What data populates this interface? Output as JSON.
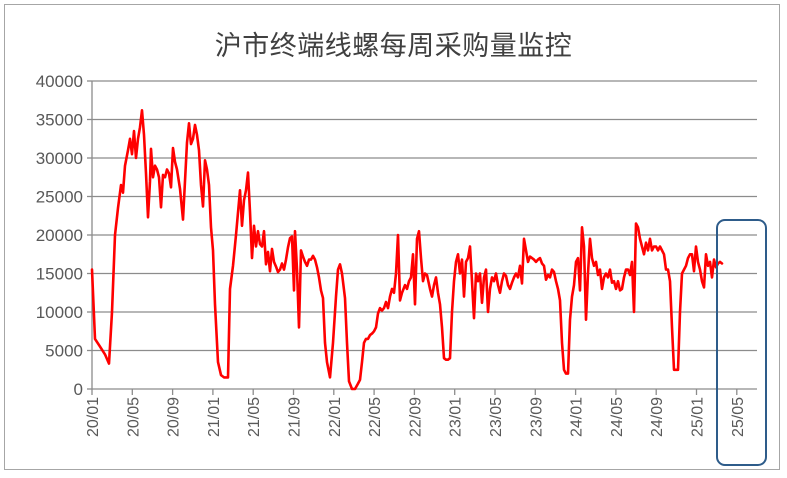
{
  "chart_data": {
    "type": "line",
    "title": "沪市终端线螺每周采购量监控",
    "xlabel": "",
    "ylabel": "",
    "ylim": [
      0,
      40000
    ],
    "yticks": [
      0,
      5000,
      10000,
      15000,
      20000,
      25000,
      30000,
      35000,
      40000
    ],
    "x_tick_labels": [
      "20/01",
      "20/05",
      "20/09",
      "21/01",
      "21/05",
      "21/09",
      "22/01",
      "22/05",
      "22/09",
      "23/01",
      "23/05",
      "23/09",
      "24/01",
      "24/05",
      "24/09",
      "25/01",
      "25/05"
    ],
    "grid": "horizontal",
    "legend": "none",
    "series": [
      {
        "name": "沪市终端线螺每周采购量",
        "color": "#ff0000",
        "points": [
          [
            92,
            15500
          ],
          [
            95,
            6500
          ],
          [
            100,
            5500
          ],
          [
            105,
            4500
          ],
          [
            109,
            3300
          ],
          [
            112,
            10000
          ],
          [
            115,
            20000
          ],
          [
            118,
            23500
          ],
          [
            121,
            26500
          ],
          [
            123,
            25500
          ],
          [
            125,
            29000
          ],
          [
            128,
            31000
          ],
          [
            130,
            32500
          ],
          [
            132,
            30500
          ],
          [
            134,
            33500
          ],
          [
            136,
            30000
          ],
          [
            138,
            32500
          ],
          [
            140,
            34000
          ],
          [
            142,
            36200
          ],
          [
            144,
            33000
          ],
          [
            146,
            28000
          ],
          [
            148,
            22300
          ],
          [
            150,
            27000
          ],
          [
            151,
            31200
          ],
          [
            153,
            27500
          ],
          [
            155,
            29000
          ],
          [
            157,
            28500
          ],
          [
            159,
            27500
          ],
          [
            161,
            23600
          ],
          [
            163,
            27800
          ],
          [
            165,
            27500
          ],
          [
            167,
            28500
          ],
          [
            169,
            28000
          ],
          [
            171,
            26200
          ],
          [
            173,
            31300
          ],
          [
            175,
            29500
          ],
          [
            177,
            28500
          ],
          [
            180,
            26000
          ],
          [
            183,
            22000
          ],
          [
            185,
            27000
          ],
          [
            187,
            32000
          ],
          [
            189,
            34500
          ],
          [
            191,
            31800
          ],
          [
            193,
            32500
          ],
          [
            195,
            34300
          ],
          [
            197,
            33000
          ],
          [
            199,
            31000
          ],
          [
            201,
            26500
          ],
          [
            203,
            23700
          ],
          [
            205,
            29700
          ],
          [
            207,
            28500
          ],
          [
            209,
            26500
          ],
          [
            211,
            21000
          ],
          [
            213,
            18000
          ],
          [
            215,
            11000
          ],
          [
            218,
            3500
          ],
          [
            221,
            1800
          ],
          [
            224,
            1500
          ],
          [
            228,
            1500
          ],
          [
            230,
            13000
          ],
          [
            233,
            16000
          ],
          [
            236,
            20000
          ],
          [
            240,
            25800
          ],
          [
            242,
            21200
          ],
          [
            244,
            24500
          ],
          [
            246,
            25800
          ],
          [
            248,
            28100
          ],
          [
            250,
            23000
          ],
          [
            252,
            17000
          ],
          [
            254,
            21200
          ],
          [
            256,
            18500
          ],
          [
            258,
            20500
          ],
          [
            260,
            18800
          ],
          [
            262,
            18500
          ],
          [
            264,
            20500
          ],
          [
            266,
            16200
          ],
          [
            268,
            17800
          ],
          [
            270,
            15300
          ],
          [
            272,
            18200
          ],
          [
            274,
            16500
          ],
          [
            276,
            15900
          ],
          [
            278,
            15200
          ],
          [
            280,
            15500
          ],
          [
            282,
            16300
          ],
          [
            284,
            15500
          ],
          [
            286,
            16800
          ],
          [
            288,
            18400
          ],
          [
            290,
            19600
          ],
          [
            292,
            19800
          ],
          [
            294,
            12800
          ],
          [
            295,
            20500
          ],
          [
            297,
            15500
          ],
          [
            299,
            8000
          ],
          [
            301,
            18000
          ],
          [
            303,
            17200
          ],
          [
            305,
            16500
          ],
          [
            307,
            16000
          ],
          [
            309,
            16800
          ],
          [
            311,
            16800
          ],
          [
            313,
            17300
          ],
          [
            315,
            16800
          ],
          [
            317,
            15800
          ],
          [
            319,
            14500
          ],
          [
            321,
            12800
          ],
          [
            323,
            11800
          ],
          [
            325,
            6000
          ],
          [
            327,
            3500
          ],
          [
            330,
            1500
          ],
          [
            333,
            6000
          ],
          [
            336,
            12000
          ],
          [
            338,
            15500
          ],
          [
            340,
            16200
          ],
          [
            342,
            15000
          ],
          [
            345,
            11800
          ],
          [
            347,
            6000
          ],
          [
            349,
            1000
          ],
          [
            352,
            0
          ],
          [
            355,
            0
          ],
          [
            358,
            700
          ],
          [
            360,
            1200
          ],
          [
            362,
            3500
          ],
          [
            364,
            6000
          ],
          [
            366,
            6500
          ],
          [
            368,
            6500
          ],
          [
            370,
            7000
          ],
          [
            372,
            7200
          ],
          [
            374,
            7500
          ],
          [
            376,
            8000
          ],
          [
            378,
            9800
          ],
          [
            380,
            10500
          ],
          [
            382,
            10200
          ],
          [
            384,
            10500
          ],
          [
            386,
            11300
          ],
          [
            388,
            10500
          ],
          [
            390,
            12000
          ],
          [
            392,
            13000
          ],
          [
            394,
            12500
          ],
          [
            396,
            15000
          ],
          [
            398,
            20000
          ],
          [
            400,
            11500
          ],
          [
            402,
            12500
          ],
          [
            405,
            13500
          ],
          [
            407,
            13000
          ],
          [
            409,
            14000
          ],
          [
            411,
            14500
          ],
          [
            413,
            17500
          ],
          [
            415,
            11000
          ],
          [
            417,
            19500
          ],
          [
            419,
            20500
          ],
          [
            421,
            17000
          ],
          [
            423,
            14000
          ],
          [
            425,
            15000
          ],
          [
            427,
            14800
          ],
          [
            430,
            13000
          ],
          [
            432,
            12000
          ],
          [
            434,
            13500
          ],
          [
            436,
            14500
          ],
          [
            438,
            12500
          ],
          [
            440,
            11000
          ],
          [
            442,
            8000
          ],
          [
            444,
            4000
          ],
          [
            446,
            3800
          ],
          [
            448,
            3800
          ],
          [
            450,
            4000
          ],
          [
            452,
            10000
          ],
          [
            454,
            14000
          ],
          [
            456,
            16500
          ],
          [
            458,
            17500
          ],
          [
            460,
            15000
          ],
          [
            462,
            16800
          ],
          [
            464,
            12000
          ],
          [
            466,
            16500
          ],
          [
            468,
            17000
          ],
          [
            470,
            18500
          ],
          [
            472,
            14000
          ],
          [
            474,
            9200
          ],
          [
            476,
            15000
          ],
          [
            478,
            14000
          ],
          [
            480,
            15000
          ],
          [
            482,
            11200
          ],
          [
            484,
            14500
          ],
          [
            486,
            15500
          ],
          [
            488,
            10000
          ],
          [
            490,
            13000
          ],
          [
            492,
            14500
          ],
          [
            494,
            14000
          ],
          [
            496,
            15000
          ],
          [
            498,
            13500
          ],
          [
            500,
            12500
          ],
          [
            502,
            14000
          ],
          [
            504,
            15000
          ],
          [
            506,
            14700
          ],
          [
            508,
            13500
          ],
          [
            510,
            13000
          ],
          [
            512,
            13800
          ],
          [
            514,
            14500
          ],
          [
            516,
            15000
          ],
          [
            518,
            14500
          ],
          [
            520,
            16000
          ],
          [
            522,
            13700
          ],
          [
            524,
            19500
          ],
          [
            526,
            18000
          ],
          [
            528,
            16500
          ],
          [
            530,
            17200
          ],
          [
            532,
            17000
          ],
          [
            534,
            16800
          ],
          [
            536,
            16500
          ],
          [
            538,
            16800
          ],
          [
            540,
            17000
          ],
          [
            542,
            16300
          ],
          [
            544,
            16000
          ],
          [
            546,
            14200
          ],
          [
            548,
            14800
          ],
          [
            550,
            14500
          ],
          [
            552,
            15500
          ],
          [
            554,
            15200
          ],
          [
            556,
            14000
          ],
          [
            558,
            13000
          ],
          [
            560,
            11500
          ],
          [
            562,
            6000
          ],
          [
            564,
            2500
          ],
          [
            566,
            2000
          ],
          [
            568,
            2000
          ],
          [
            570,
            9000
          ],
          [
            572,
            12000
          ],
          [
            574,
            13500
          ],
          [
            576,
            16500
          ],
          [
            578,
            17000
          ],
          [
            580,
            12800
          ],
          [
            582,
            21000
          ],
          [
            584,
            18500
          ],
          [
            586,
            9000
          ],
          [
            588,
            15000
          ],
          [
            590,
            19500
          ],
          [
            592,
            17000
          ],
          [
            594,
            16000
          ],
          [
            596,
            16500
          ],
          [
            598,
            14800
          ],
          [
            600,
            15500
          ],
          [
            602,
            13000
          ],
          [
            604,
            14500
          ],
          [
            606,
            15000
          ],
          [
            608,
            14500
          ],
          [
            610,
            15500
          ],
          [
            612,
            13800
          ],
          [
            614,
            14000
          ],
          [
            616,
            13000
          ],
          [
            618,
            14000
          ],
          [
            620,
            12800
          ],
          [
            622,
            13000
          ],
          [
            624,
            14500
          ],
          [
            626,
            15500
          ],
          [
            628,
            15500
          ],
          [
            630,
            14800
          ],
          [
            632,
            16500
          ],
          [
            634,
            10000
          ],
          [
            636,
            21500
          ],
          [
            638,
            21000
          ],
          [
            640,
            19500
          ],
          [
            642,
            18500
          ],
          [
            644,
            17500
          ],
          [
            646,
            19000
          ],
          [
            648,
            18000
          ],
          [
            650,
            19500
          ],
          [
            652,
            18000
          ],
          [
            654,
            18500
          ],
          [
            656,
            18500
          ],
          [
            658,
            18000
          ],
          [
            660,
            18500
          ],
          [
            662,
            18000
          ],
          [
            664,
            17500
          ],
          [
            666,
            15500
          ],
          [
            668,
            15500
          ],
          [
            670,
            14000
          ],
          [
            672,
            8000
          ],
          [
            674,
            2500
          ],
          [
            676,
            2500
          ],
          [
            678,
            2500
          ],
          [
            680,
            10000
          ],
          [
            682,
            15000
          ],
          [
            684,
            15500
          ],
          [
            686,
            16000
          ],
          [
            688,
            17000
          ],
          [
            690,
            17500
          ],
          [
            692,
            17500
          ],
          [
            694,
            15300
          ],
          [
            696,
            18500
          ],
          [
            698,
            16500
          ],
          [
            700,
            15500
          ],
          [
            702,
            14000
          ],
          [
            704,
            13200
          ],
          [
            706,
            17500
          ],
          [
            708,
            16000
          ],
          [
            710,
            16500
          ],
          [
            712,
            14500
          ],
          [
            714,
            16800
          ],
          [
            716,
            15800
          ],
          [
            718,
            16300
          ],
          [
            720,
            16500
          ],
          [
            722,
            16300
          ]
        ]
      }
    ],
    "highlight_box": {
      "label_covered": "25/05",
      "color": "#2e5c8a"
    }
  }
}
